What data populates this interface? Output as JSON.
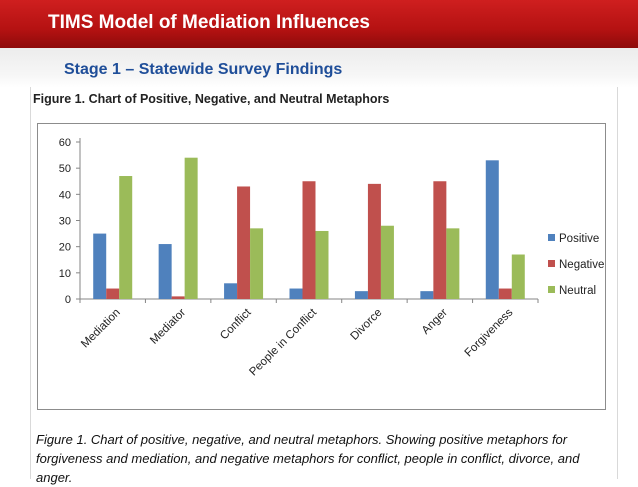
{
  "header": {
    "title": "TIMS Model of Mediation Influences"
  },
  "subtitle": "Stage 1 –  Statewide Survey Findings",
  "figure": {
    "heading": "Figure 1. Chart of Positive, Negative, and Neutral Metaphors",
    "caption": "Figure 1. Chart of  positive, negative, and neutral metaphors.  Showing positive metaphors for forgiveness and mediation, and negative metaphors for conflict, people in conflict, divorce, and anger."
  },
  "colors": {
    "header": "#c41a1a",
    "subtitle": "#1f4e99",
    "positive": "#4f81bd",
    "negative": "#c0504d",
    "neutral": "#9bbb59"
  },
  "chart_data": {
    "type": "bar",
    "title": "",
    "xlabel": "",
    "ylabel": "",
    "ylim": [
      0,
      60
    ],
    "yticks": [
      0,
      10,
      20,
      30,
      40,
      50,
      60
    ],
    "grid": false,
    "legend_position": "right",
    "categories": [
      "Mediation",
      "Mediator",
      "Conflict",
      "People in Conflict",
      "Divorce",
      "Anger",
      "Forgiveness"
    ],
    "series": [
      {
        "name": "Positive",
        "color": "#4f81bd",
        "values": [
          25,
          21,
          6,
          4,
          3,
          3,
          53
        ]
      },
      {
        "name": "Negative",
        "color": "#c0504d",
        "values": [
          4,
          1,
          43,
          45,
          44,
          45,
          4
        ]
      },
      {
        "name": "Neutral",
        "color": "#9bbb59",
        "values": [
          47,
          54,
          27,
          26,
          28,
          27,
          17
        ]
      }
    ]
  }
}
